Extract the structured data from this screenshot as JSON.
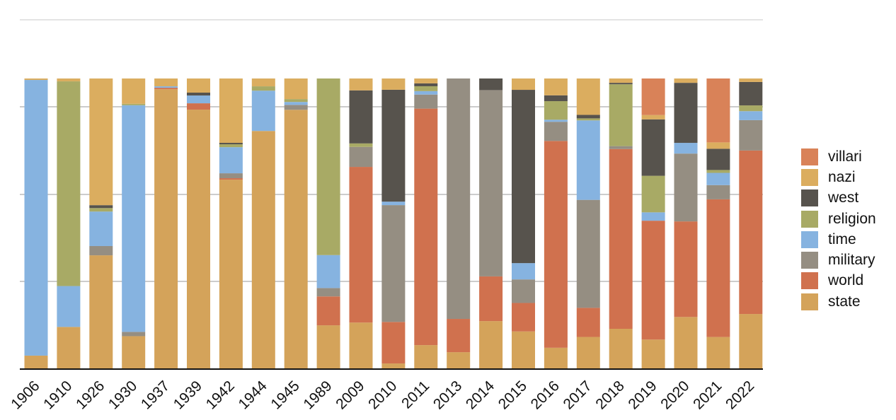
{
  "chart_data": {
    "type": "bar",
    "stacked": true,
    "normalized": true,
    "categories": [
      "1906",
      "1910",
      "1926",
      "1930",
      "1937",
      "1939",
      "1942",
      "1944",
      "1945",
      "1989",
      "2009",
      "2010",
      "2011",
      "2013",
      "2014",
      "2015",
      "2016",
      "2017",
      "2018",
      "2019",
      "2020",
      "2021",
      "2022"
    ],
    "series": [
      {
        "name": "state",
        "color": "#D4A35A",
        "values": [
          4.4,
          14.4,
          39.0,
          11.2,
          96.3,
          89.7,
          65.1,
          81.9,
          89.2,
          14.9,
          15.8,
          1.7,
          8.1,
          5.6,
          16.3,
          12.7,
          7.1,
          10.8,
          13.7,
          10.0,
          17.8,
          10.8,
          18.8
        ]
      },
      {
        "name": "world",
        "color": "#D0714E",
        "values": [
          0,
          0,
          0,
          0,
          0.5,
          2.2,
          0.5,
          0,
          0,
          10.0,
          53.7,
          14.4,
          82.4,
          11.5,
          15.4,
          9.8,
          71.2,
          10.0,
          62.2,
          41.3,
          33.1,
          47.4,
          56.5
        ]
      },
      {
        "name": "military",
        "color": "#958E82",
        "values": [
          0,
          0,
          3.2,
          1.5,
          0,
          0,
          1.7,
          0,
          1.7,
          2.9,
          6.9,
          40.5,
          4.9,
          83.1,
          64.2,
          8.1,
          6.6,
          37.1,
          1.0,
          0,
          23.5,
          4.9,
          10.5
        ]
      },
      {
        "name": "time",
        "color": "#86B3E0",
        "values": [
          95.1,
          14.2,
          11.9,
          78.8,
          0.5,
          2.7,
          9.0,
          13.9,
          1.0,
          11.4,
          0,
          1.2,
          1.2,
          0,
          0,
          5.6,
          0.7,
          27.3,
          0,
          2.9,
          3.7,
          4.2,
          3.1
        ]
      },
      {
        "name": "religion",
        "color": "#A8AA65",
        "values": [
          0,
          71.1,
          1.2,
          0.5,
          0,
          0,
          1.0,
          1.5,
          1.0,
          61.1,
          1.2,
          0,
          1.7,
          0,
          0,
          0,
          6.4,
          0.7,
          21.4,
          12.7,
          0,
          1.0,
          2.0
        ]
      },
      {
        "name": "west",
        "color": "#57534D",
        "values": [
          0,
          0,
          1.0,
          0,
          0,
          1.0,
          0.5,
          0,
          0,
          0,
          18.3,
          38.8,
          1.0,
          0,
          4.0,
          59.6,
          2.0,
          1.2,
          0.5,
          19.6,
          20.8,
          7.3,
          8.1
        ]
      },
      {
        "name": "nazi",
        "color": "#DBAD5F",
        "values": [
          0.5,
          1.0,
          43.7,
          8.8,
          2.7,
          4.9,
          22.2,
          2.7,
          7.1,
          0,
          4.1,
          3.9,
          1.7,
          0,
          0,
          3.9,
          5.8,
          12.5,
          1.5,
          1.5,
          1.5,
          2.2,
          1.2
        ]
      },
      {
        "name": "villari",
        "color": "#D98258",
        "values": [
          0,
          0,
          0,
          0,
          0,
          0,
          0,
          0,
          0,
          0,
          0,
          0,
          0,
          0,
          0,
          0,
          0,
          0,
          0,
          12.7,
          0,
          22.0,
          0
        ]
      }
    ],
    "ylim": [
      0,
      100
    ],
    "grid": true,
    "legend_position": "right",
    "xlabel": "",
    "ylabel": ""
  }
}
